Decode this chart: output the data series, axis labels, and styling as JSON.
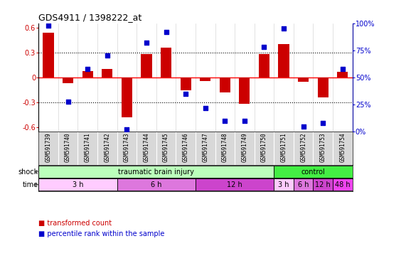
{
  "title": "GDS4911 / 1398222_at",
  "samples": [
    "GSM591739",
    "GSM591740",
    "GSM591741",
    "GSM591742",
    "GSM591743",
    "GSM591744",
    "GSM591745",
    "GSM591746",
    "GSM591747",
    "GSM591748",
    "GSM591749",
    "GSM591750",
    "GSM591751",
    "GSM591752",
    "GSM591753",
    "GSM591754"
  ],
  "bar_values": [
    0.54,
    -0.07,
    0.08,
    0.1,
    -0.48,
    0.28,
    0.36,
    -0.15,
    -0.04,
    -0.18,
    -0.32,
    0.28,
    0.4,
    -0.05,
    -0.24,
    0.07
  ],
  "dot_values": [
    98,
    28,
    58,
    70,
    2,
    82,
    92,
    35,
    22,
    10,
    10,
    78,
    95,
    5,
    8,
    58
  ],
  "bar_color": "#cc0000",
  "dot_color": "#0000cc",
  "ylim": [
    -0.65,
    0.65
  ],
  "y2lim": [
    0,
    100
  ],
  "yticks": [
    -0.6,
    -0.3,
    0.0,
    0.3,
    0.6
  ],
  "y2ticks": [
    0,
    25,
    50,
    75,
    100
  ],
  "ytick_labels": [
    "-0.6",
    "-0.3",
    "0",
    "0.3",
    "0.6"
  ],
  "y2tick_labels": [
    "0%",
    "25%",
    "50%",
    "75%",
    "100%"
  ],
  "hlines": [
    0.3,
    0.0,
    -0.3
  ],
  "hline_colors": [
    "#000000",
    "#ff0000",
    "#000000"
  ],
  "hline_styles": [
    "dotted",
    "solid",
    "dotted"
  ],
  "shock_groups": [
    {
      "label": "traumatic brain injury",
      "start": 0,
      "end": 12,
      "color": "#bbffbb"
    },
    {
      "label": "control",
      "start": 12,
      "end": 16,
      "color": "#44ee44"
    }
  ],
  "time_groups": [
    {
      "label": "3 h",
      "start": 0,
      "end": 4,
      "color": "#ffccff"
    },
    {
      "label": "6 h",
      "start": 4,
      "end": 8,
      "color": "#ee88ee"
    },
    {
      "label": "12 h",
      "start": 8,
      "end": 12,
      "color": "#dd44dd"
    },
    {
      "label": "48 h",
      "start": 12,
      "end": 16,
      "color": "#ee44ee"
    },
    {
      "label": "3 h",
      "start": 12,
      "end": 13,
      "color": "#ffccff"
    },
    {
      "label": "6 h",
      "start": 13,
      "end": 14,
      "color": "#ee88ee"
    },
    {
      "label": "12 h",
      "start": 14,
      "end": 15,
      "color": "#dd44dd"
    },
    {
      "label": "48 h",
      "start": 15,
      "end": 16,
      "color": "#ee44ee"
    }
  ],
  "bg_color": "#ffffff",
  "label_bg": "#d8d8d8",
  "bar_width": 0.55
}
